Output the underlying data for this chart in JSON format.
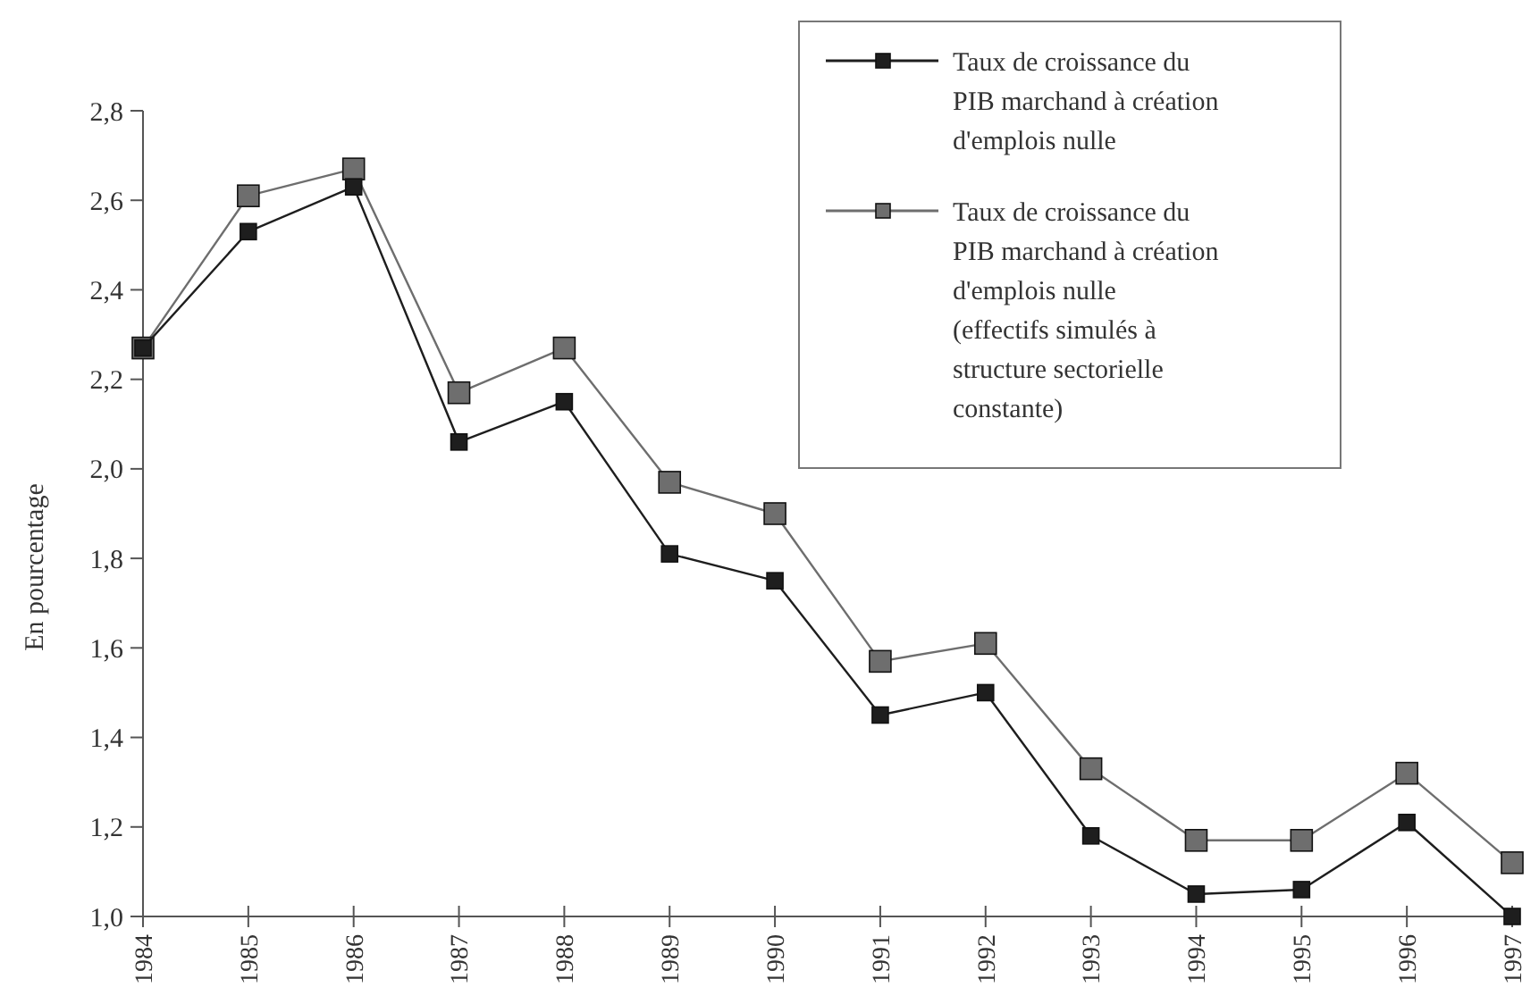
{
  "chart_data": {
    "type": "line",
    "ylabel": "En pourcentage",
    "categories": [
      "1984",
      "1985",
      "1986",
      "1987",
      "1988",
      "1989",
      "1990",
      "1991",
      "1992",
      "1993",
      "1994",
      "1995",
      "1996",
      "1997"
    ],
    "series": [
      {
        "name": "Taux de croissance du PIB marchand à création d'emplois nulle",
        "color": "#1e1e1e",
        "values": [
          2.27,
          2.53,
          2.63,
          2.06,
          2.15,
          1.81,
          1.75,
          1.45,
          1.5,
          1.18,
          1.05,
          1.06,
          1.21,
          1.0
        ]
      },
      {
        "name": "Taux de croissance du PIB marchand à création d'emplois nulle (effectifs simulés à structure sectorielle constante)",
        "color": "#6e6e6e",
        "values": [
          2.27,
          2.61,
          2.67,
          2.17,
          2.27,
          1.97,
          1.9,
          1.57,
          1.61,
          1.33,
          1.17,
          1.17,
          1.32,
          1.12
        ]
      }
    ],
    "ylim": [
      1.0,
      2.8
    ],
    "yticks": [
      {
        "value": 1.0,
        "label": "1,0"
      },
      {
        "value": 1.2,
        "label": "1,2"
      },
      {
        "value": 1.4,
        "label": "1,4"
      },
      {
        "value": 1.6,
        "label": "1,6"
      },
      {
        "value": 1.8,
        "label": "1,8"
      },
      {
        "value": 2.0,
        "label": "2,0"
      },
      {
        "value": 2.2,
        "label": "2,2"
      },
      {
        "value": 2.4,
        "label": "2,4"
      },
      {
        "value": 2.6,
        "label": "2,6"
      },
      {
        "value": 2.8,
        "label": "2,8"
      }
    ],
    "grid": false,
    "legend": "top right",
    "marker": "square",
    "line_style": "solid"
  }
}
